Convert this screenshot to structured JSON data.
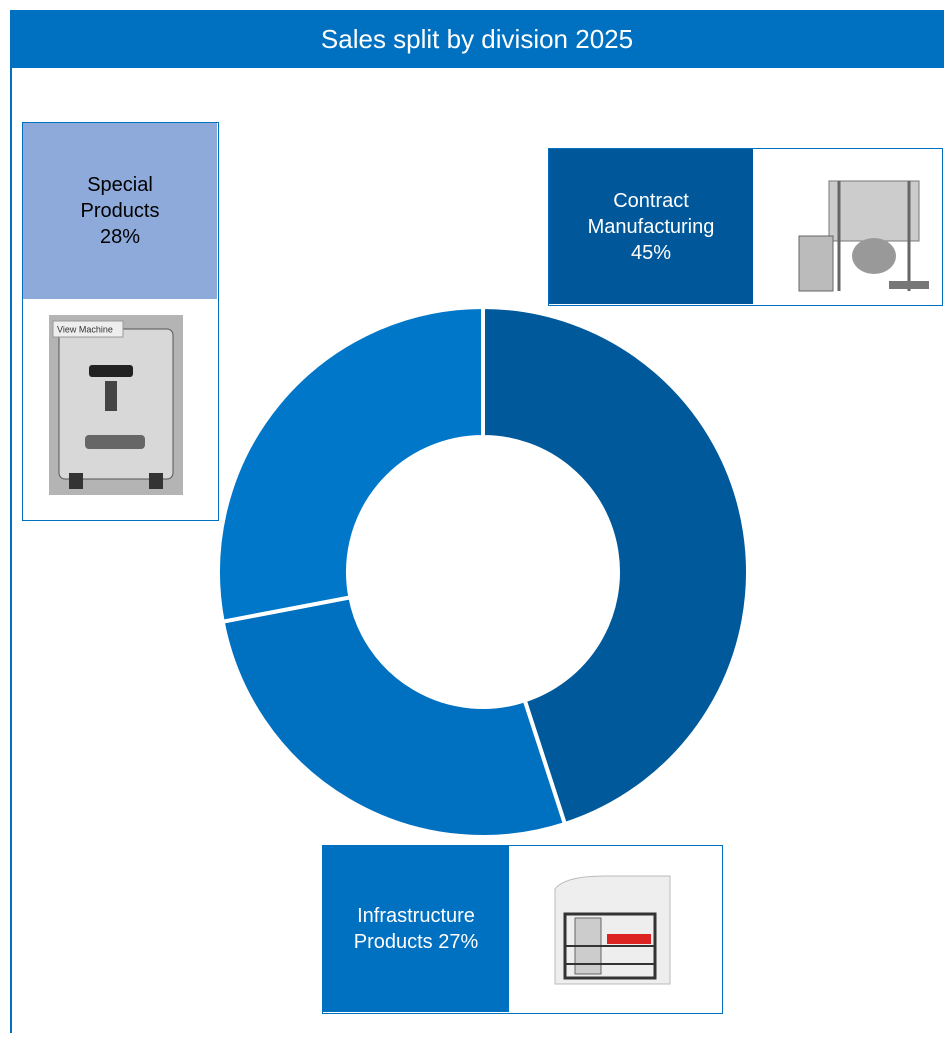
{
  "chart_data": {
    "type": "donut",
    "title": "Sales split by division 2025",
    "categories": [
      "Contract Manufacturing",
      "Infrastructure Products",
      "Special Products"
    ],
    "values": [
      45,
      27,
      28
    ],
    "value_labels": [
      "45%",
      "27%",
      "28%"
    ],
    "colors": [
      "#00599b",
      "#0070c0",
      "#0077c8"
    ]
  },
  "image_text": "View Machine"
}
